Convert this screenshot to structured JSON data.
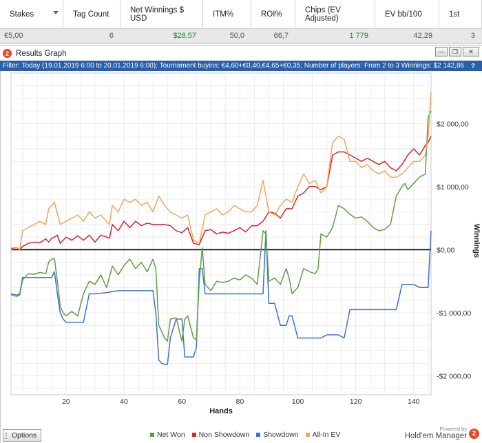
{
  "stats": {
    "columns": [
      {
        "label": "Stakes",
        "width": 92
      },
      {
        "label": "Tag Count",
        "width": 83
      },
      {
        "label": "Net Winnings $ USD",
        "width": 120
      },
      {
        "label": "ITM%",
        "width": 70
      },
      {
        "label": "ROI%",
        "width": 64
      },
      {
        "label": "Chips (EV Adjusted)",
        "width": 116
      },
      {
        "label": "EV bb/100",
        "width": 93
      },
      {
        "label": "1st",
        "width": 62
      }
    ],
    "row": [
      "€5,00",
      "6",
      "$28,57",
      "50,0",
      "66,7",
      "1 779",
      "42,29",
      "3"
    ]
  },
  "window": {
    "title": "Results Graph",
    "min": "—",
    "restore": "❐",
    "close": "✕",
    "help": "?",
    "filter": "Filter: Today (19.01.2019 6:00 to 20.01.2019 6:00); Tournament buyins: €4,60+€0,40,€4,65+€0,35; Number of players: From 2 to 3 Winnings: $2 142,86"
  },
  "colors": {
    "net_won": "#5e9e46",
    "non_showdown": "#d9232a",
    "showdown": "#3d6fd6",
    "allin_ev": "#f2a55c"
  },
  "chart_data": {
    "type": "line",
    "xlabel": "Hands",
    "ylabel": "Winnings",
    "xlim": [
      1,
      146
    ],
    "ylim": [
      -2300,
      2800
    ],
    "x_ticks": [
      20,
      40,
      60,
      80,
      100,
      120,
      140
    ],
    "y_ticks": [
      {
        "value": 2000,
        "label": "$2 000,00"
      },
      {
        "value": 1000,
        "label": "$1 000,00"
      },
      {
        "value": 0,
        "label": "$0,00"
      },
      {
        "value": -1000,
        "label": "-$1 000,00"
      },
      {
        "value": -2000,
        "label": "-$2 000,00"
      }
    ],
    "series": [
      {
        "name": "Net Won",
        "color_key": "net_won",
        "x": [
          1,
          3,
          4,
          5,
          7,
          9,
          11,
          13,
          14,
          15,
          16,
          17,
          18,
          19,
          20,
          22,
          24,
          26,
          28,
          30,
          32,
          34,
          36,
          38,
          40,
          42,
          44,
          46,
          48,
          50,
          51,
          52,
          54,
          55,
          56,
          58,
          60,
          61,
          62,
          64,
          65,
          66,
          67,
          68,
          70,
          72,
          74,
          76,
          78,
          80,
          82,
          84,
          86,
          88,
          89,
          90,
          92,
          94,
          96,
          97,
          98,
          100,
          102,
          104,
          106,
          107,
          108,
          110,
          112,
          114,
          116,
          118,
          120,
          122,
          124,
          126,
          128,
          130,
          132,
          134,
          136,
          137,
          138,
          140,
          142,
          144,
          145,
          146
        ],
        "y": [
          -720,
          -740,
          -720,
          -480,
          -380,
          -390,
          -360,
          -380,
          -200,
          -150,
          -140,
          -500,
          -900,
          -1000,
          -1050,
          -980,
          -1050,
          -700,
          -500,
          -550,
          -400,
          -600,
          -260,
          -400,
          -250,
          -150,
          -300,
          -200,
          -350,
          -150,
          -300,
          -1200,
          -1400,
          -1450,
          -1100,
          -1080,
          -1450,
          -1100,
          -1050,
          -1400,
          -1430,
          -500,
          30,
          -550,
          -650,
          -500,
          -520,
          -500,
          -450,
          -480,
          -400,
          -450,
          -550,
          300,
          250,
          -500,
          -450,
          -550,
          -300,
          -450,
          -700,
          -600,
          -300,
          -350,
          -380,
          -300,
          250,
          200,
          350,
          700,
          650,
          560,
          500,
          520,
          450,
          350,
          300,
          320,
          400,
          850,
          1000,
          1050,
          950,
          1050,
          1150,
          1200,
          2100,
          2200
        ]
      },
      {
        "name": "Non Showdown",
        "color_key": "non_showdown",
        "x": [
          1,
          3,
          4,
          5,
          7,
          9,
          11,
          13,
          14,
          15,
          16,
          17,
          18,
          20,
          22,
          24,
          26,
          28,
          30,
          32,
          34,
          35,
          36,
          38,
          40,
          42,
          44,
          46,
          48,
          50,
          52,
          54,
          56,
          58,
          60,
          62,
          64,
          66,
          68,
          70,
          72,
          74,
          76,
          78,
          80,
          82,
          84,
          86,
          88,
          90,
          92,
          94,
          96,
          98,
          100,
          102,
          104,
          106,
          108,
          110,
          112,
          114,
          116,
          118,
          120,
          122,
          124,
          126,
          128,
          130,
          132,
          134,
          136,
          138,
          140,
          142,
          144,
          145,
          146
        ],
        "y": [
          20,
          30,
          0,
          50,
          100,
          120,
          110,
          170,
          120,
          180,
          200,
          230,
          100,
          200,
          150,
          220,
          150,
          230,
          120,
          230,
          200,
          180,
          400,
          300,
          450,
          350,
          450,
          380,
          420,
          400,
          400,
          400,
          380,
          300,
          270,
          350,
          100,
          80,
          300,
          320,
          250,
          280,
          260,
          300,
          350,
          280,
          380,
          380,
          450,
          600,
          580,
          500,
          650,
          650,
          850,
          900,
          1000,
          1000,
          950,
          1000,
          1500,
          1550,
          1550,
          1500,
          1450,
          1400,
          1450,
          1400,
          1350,
          1400,
          1300,
          1250,
          1350,
          1500,
          1600,
          1500,
          1650,
          1700,
          1800
        ]
      },
      {
        "name": "Showdown",
        "color_key": "showdown",
        "x": [
          1,
          3,
          4,
          5,
          7,
          9,
          12,
          14,
          15,
          16,
          17,
          18,
          19,
          20,
          22,
          24,
          26,
          28,
          30,
          34,
          38,
          42,
          46,
          48,
          50,
          51,
          52,
          53,
          54,
          55,
          56,
          58,
          60,
          61,
          62,
          64,
          65,
          66,
          67,
          68,
          70,
          72,
          74,
          78,
          82,
          86,
          88,
          89,
          90,
          92,
          94,
          96,
          97,
          98,
          100,
          104,
          108,
          110,
          112,
          114,
          116,
          118,
          120,
          122,
          124,
          126,
          128,
          130,
          132,
          134,
          136,
          138,
          140,
          142,
          144,
          145,
          146
        ],
        "y": [
          -700,
          -720,
          -700,
          -440,
          -440,
          -440,
          -440,
          -440,
          -440,
          -350,
          -700,
          -1000,
          -1100,
          -1150,
          -1150,
          -1150,
          -1150,
          -700,
          -700,
          -680,
          -650,
          -650,
          -650,
          -650,
          -650,
          -1000,
          -1750,
          -1800,
          -1820,
          -1820,
          -1400,
          -1100,
          -1100,
          -1700,
          -1700,
          -1700,
          -1550,
          -300,
          -300,
          -700,
          -700,
          -700,
          -700,
          -700,
          -700,
          -700,
          -700,
          300,
          -850,
          -850,
          -1200,
          -1200,
          -1050,
          -1050,
          -1400,
          -1400,
          -1400,
          -1350,
          -1350,
          -1350,
          -1400,
          -950,
          -950,
          -950,
          -950,
          -950,
          -950,
          -950,
          -950,
          -950,
          -550,
          -550,
          -550,
          -600,
          -600,
          -600,
          300
        ]
      },
      {
        "name": "All-In EV",
        "color_key": "allin_ev",
        "x": [
          1,
          3,
          4,
          5,
          7,
          9,
          11,
          13,
          14,
          15,
          16,
          18,
          20,
          22,
          24,
          26,
          28,
          30,
          32,
          34,
          35,
          36,
          38,
          40,
          42,
          44,
          46,
          48,
          50,
          52,
          54,
          56,
          58,
          60,
          62,
          64,
          66,
          68,
          70,
          72,
          74,
          76,
          78,
          80,
          82,
          84,
          86,
          88,
          90,
          92,
          94,
          96,
          98,
          100,
          102,
          104,
          106,
          108,
          110,
          112,
          114,
          116,
          118,
          120,
          122,
          124,
          126,
          128,
          130,
          132,
          134,
          136,
          138,
          140,
          142,
          144,
          145,
          146
        ],
        "y": [
          0,
          30,
          0,
          300,
          350,
          400,
          450,
          400,
          650,
          700,
          750,
          400,
          450,
          500,
          550,
          450,
          600,
          500,
          550,
          450,
          400,
          700,
          600,
          800,
          750,
          800,
          700,
          750,
          600,
          850,
          700,
          600,
          550,
          500,
          550,
          150,
          100,
          550,
          600,
          650,
          550,
          600,
          700,
          650,
          600,
          600,
          700,
          1100,
          600,
          550,
          700,
          800,
          750,
          1000,
          1200,
          1050,
          1100,
          900,
          1000,
          1700,
          1800,
          1750,
          1400,
          1400,
          1300,
          1350,
          1250,
          1200,
          1250,
          1150,
          1150,
          1200,
          1300,
          1400,
          1400,
          1500,
          1800,
          2500
        ]
      }
    ]
  },
  "footer": {
    "options": "Options",
    "powered_by": "Powered by",
    "brand": "Hold'em Manager",
    "badge": "2"
  }
}
